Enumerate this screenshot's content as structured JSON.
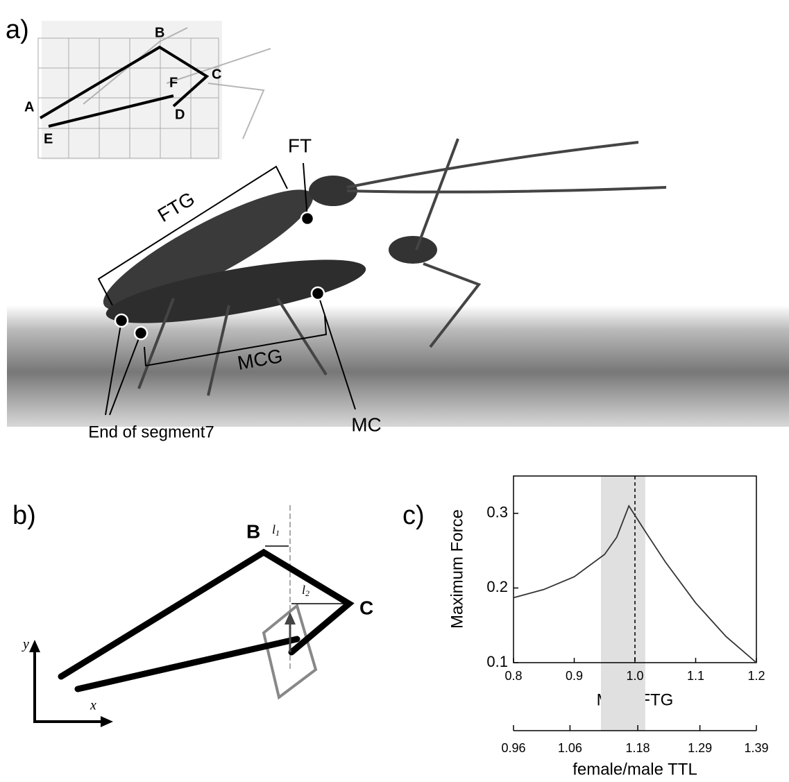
{
  "panel_a": {
    "label": "a)",
    "inset_points": [
      "A",
      "B",
      "C",
      "D",
      "E",
      "F"
    ],
    "annotations": {
      "ftg": "FTG",
      "ft": "FT",
      "mcg": "MCG",
      "mc": "MC",
      "segment": "End of segment7"
    }
  },
  "panel_b": {
    "label": "b)",
    "points": [
      "B",
      "C"
    ],
    "l1": {
      "base": "l",
      "sub": "1"
    },
    "l2": {
      "base": "l",
      "sub": "2"
    },
    "axis_x": "x",
    "axis_y": "y"
  },
  "chart_data": {
    "type": "line",
    "label": "c)",
    "ylabel": "Maximum Force",
    "xlabel": "MCG/FTG",
    "x2label": "female/male TTL",
    "x": [
      0.8,
      0.85,
      0.9,
      0.95,
      0.97,
      0.99,
      1.02,
      1.05,
      1.1,
      1.15,
      1.2
    ],
    "values": [
      0.187,
      0.198,
      0.215,
      0.245,
      0.268,
      0.31,
      0.272,
      0.235,
      0.18,
      0.135,
      0.1
    ],
    "color": "#333333",
    "xlim": [
      0.8,
      1.2
    ],
    "xticks": [
      0.8,
      0.9,
      {
        "value": 1,
        "label": "1.0"
      },
      1.1,
      1.2
    ],
    "ylim": [
      0.1,
      0.35
    ],
    "yticks": [
      0.1,
      0.2,
      0.3
    ],
    "x2lim": [
      0.96,
      1.39
    ],
    "x2ticks": [
      0.96,
      1.06,
      1.18,
      1.29,
      1.39
    ],
    "shade": [
      0.944,
      1.017
    ],
    "vline": 1.0
  }
}
